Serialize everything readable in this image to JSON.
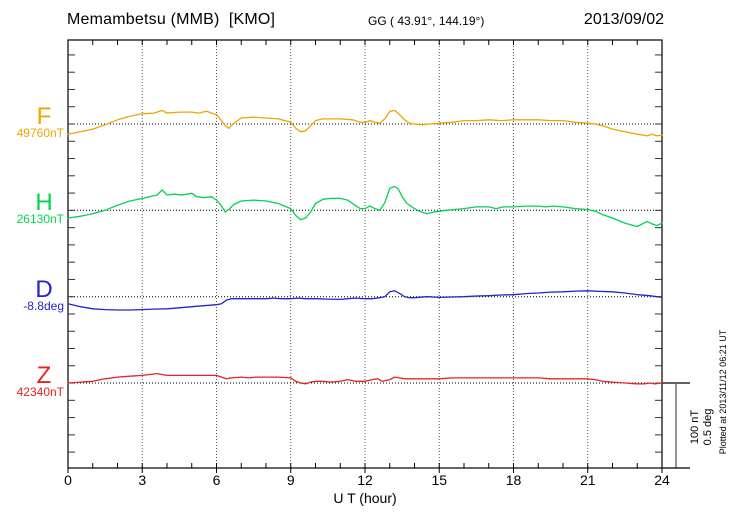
{
  "header": {
    "station": "Memambetsu (MMB)  [KMO]",
    "coords": "GG ( 43.91°, 144.19°)",
    "date": "2013/09/02"
  },
  "x_axis": {
    "label": "U T (hour)",
    "ticks": [
      "0",
      "3",
      "6",
      "9",
      "12",
      "15",
      "18",
      "21",
      "24"
    ],
    "tick_hours": [
      0,
      3,
      6,
      9,
      12,
      15,
      18,
      21,
      24
    ],
    "minor_step_hours": 1,
    "range_hours": [
      0,
      24
    ]
  },
  "scale_bar": {
    "nt_label": "100 nT",
    "deg_label": "0.5 deg"
  },
  "footer_note": "Plotted at 2013/11/12 06:21  UT",
  "colors": {
    "f_trace": "#f0a400",
    "h_trace": "#00d44f",
    "d_trace": "#2323cc",
    "z_trace": "#e62222",
    "frame": "#000000",
    "grid": "#555555",
    "background": "#ffffff"
  },
  "chart_data": {
    "type": "line",
    "title": "Memambetsu (MMB) [KMO] magnetogram, 2013/09/02",
    "xlabel": "U T (hour)",
    "xlim": [
      0,
      24
    ],
    "x_major_tick_hours": [
      0,
      3,
      6,
      9,
      12,
      15,
      18,
      21,
      24
    ],
    "grid": "dotted vertical lines every 3 h; dotted horizontal baseline for each channel",
    "legend_position": "left of plot, one colored label per channel",
    "scale": {
      "division_nT": 100,
      "division_deg": 0.5
    },
    "points_format": "[UT_hour, offset_from_baseline_in_unit]",
    "series": [
      {
        "name": "F",
        "label": "F",
        "baseline_label": "49760nT",
        "baseline_value": 49760,
        "unit": "nT",
        "color": "#f0a400",
        "points": [
          [
            0,
            -12
          ],
          [
            0.5,
            -9
          ],
          [
            1,
            -6
          ],
          [
            1.5,
            -1
          ],
          [
            2,
            5
          ],
          [
            2.5,
            9
          ],
          [
            3,
            12
          ],
          [
            3.5,
            13
          ],
          [
            3.8,
            16
          ],
          [
            4,
            13
          ],
          [
            4.5,
            14
          ],
          [
            5,
            14
          ],
          [
            5.3,
            13
          ],
          [
            5.6,
            15
          ],
          [
            5.8,
            13
          ],
          [
            6,
            11
          ],
          [
            6.2,
            4
          ],
          [
            6.35,
            -2
          ],
          [
            6.5,
            -5
          ],
          [
            6.7,
            1
          ],
          [
            7,
            7
          ],
          [
            7.5,
            8
          ],
          [
            8,
            7
          ],
          [
            8.5,
            6
          ],
          [
            9,
            2
          ],
          [
            9.2,
            -5
          ],
          [
            9.4,
            -9
          ],
          [
            9.6,
            -8
          ],
          [
            9.8,
            -2
          ],
          [
            10,
            4
          ],
          [
            10.3,
            6
          ],
          [
            10.7,
            6
          ],
          [
            11,
            6
          ],
          [
            11.5,
            5
          ],
          [
            11.8,
            2
          ],
          [
            12,
            2
          ],
          [
            12.2,
            4
          ],
          [
            12.4,
            2
          ],
          [
            12.6,
            1
          ],
          [
            12.8,
            6
          ],
          [
            13,
            15
          ],
          [
            13.2,
            16
          ],
          [
            13.4,
            11
          ],
          [
            13.6,
            5
          ],
          [
            13.8,
            1
          ],
          [
            14,
            0
          ],
          [
            14.3,
            -1
          ],
          [
            14.6,
            0
          ],
          [
            15,
            1
          ],
          [
            15.5,
            2
          ],
          [
            16,
            4
          ],
          [
            16.5,
            4
          ],
          [
            17,
            5
          ],
          [
            17.5,
            4
          ],
          [
            18,
            5
          ],
          [
            18.5,
            5
          ],
          [
            19,
            5
          ],
          [
            19.5,
            4
          ],
          [
            20,
            4
          ],
          [
            20.5,
            2
          ],
          [
            21,
            1
          ],
          [
            21.3,
            0
          ],
          [
            21.6,
            -2
          ],
          [
            22,
            -6
          ],
          [
            22.5,
            -9
          ],
          [
            23,
            -12
          ],
          [
            23.4,
            -14
          ],
          [
            23.6,
            -12
          ],
          [
            23.8,
            -14
          ],
          [
            24,
            -13
          ]
        ]
      },
      {
        "name": "H",
        "label": "H",
        "baseline_label": "26130nT",
        "baseline_value": 26130,
        "unit": "nT",
        "color": "#00d44f",
        "points": [
          [
            0,
            -9
          ],
          [
            0.5,
            -7
          ],
          [
            1,
            -4
          ],
          [
            1.5,
            0
          ],
          [
            2,
            6
          ],
          [
            2.5,
            11
          ],
          [
            3,
            14
          ],
          [
            3.3,
            16
          ],
          [
            3.6,
            18
          ],
          [
            3.8,
            24
          ],
          [
            4,
            18
          ],
          [
            4.3,
            19
          ],
          [
            4.6,
            18
          ],
          [
            5,
            20
          ],
          [
            5.2,
            16
          ],
          [
            5.5,
            15
          ],
          [
            5.8,
            16
          ],
          [
            6,
            12
          ],
          [
            6.2,
            5
          ],
          [
            6.35,
            -2
          ],
          [
            6.5,
            1
          ],
          [
            6.7,
            7
          ],
          [
            7,
            11
          ],
          [
            7.5,
            12
          ],
          [
            8,
            11
          ],
          [
            8.5,
            8
          ],
          [
            9,
            2
          ],
          [
            9.2,
            -6
          ],
          [
            9.4,
            -11
          ],
          [
            9.6,
            -9
          ],
          [
            9.8,
            -2
          ],
          [
            10,
            8
          ],
          [
            10.3,
            13
          ],
          [
            10.6,
            14
          ],
          [
            11,
            14
          ],
          [
            11.3,
            12
          ],
          [
            11.6,
            6
          ],
          [
            11.8,
            2
          ],
          [
            12,
            2
          ],
          [
            12.2,
            5
          ],
          [
            12.4,
            2
          ],
          [
            12.6,
            0
          ],
          [
            12.8,
            9
          ],
          [
            13,
            26
          ],
          [
            13.2,
            28
          ],
          [
            13.35,
            25
          ],
          [
            13.5,
            16
          ],
          [
            13.7,
            8
          ],
          [
            14,
            2
          ],
          [
            14.2,
            -1
          ],
          [
            14.5,
            -4
          ],
          [
            14.8,
            -2
          ],
          [
            15,
            -1
          ],
          [
            15.3,
            0
          ],
          [
            15.6,
            1
          ],
          [
            16,
            2
          ],
          [
            16.5,
            4
          ],
          [
            17,
            4
          ],
          [
            17.3,
            2
          ],
          [
            17.6,
            4
          ],
          [
            18,
            4
          ],
          [
            18.5,
            5
          ],
          [
            19,
            5
          ],
          [
            19.3,
            4
          ],
          [
            19.6,
            5
          ],
          [
            20,
            4
          ],
          [
            20.5,
            2
          ],
          [
            21,
            1
          ],
          [
            21.3,
            -1
          ],
          [
            21.6,
            -5
          ],
          [
            22,
            -9
          ],
          [
            22.5,
            -15
          ],
          [
            23,
            -19
          ],
          [
            23.2,
            -16
          ],
          [
            23.4,
            -13
          ],
          [
            23.6,
            -16
          ],
          [
            23.8,
            -18
          ],
          [
            24,
            -15
          ]
        ]
      },
      {
        "name": "D",
        "label": "D",
        "baseline_label": "-8.8deg",
        "baseline_value": -8.8,
        "unit": "deg",
        "color": "#2323cc",
        "points": [
          [
            0,
            -0.041
          ],
          [
            0.5,
            -0.059
          ],
          [
            1,
            -0.071
          ],
          [
            1.5,
            -0.076
          ],
          [
            2,
            -0.078
          ],
          [
            2.5,
            -0.078
          ],
          [
            3,
            -0.076
          ],
          [
            3.5,
            -0.073
          ],
          [
            4,
            -0.071
          ],
          [
            4.5,
            -0.065
          ],
          [
            5,
            -0.059
          ],
          [
            5.5,
            -0.053
          ],
          [
            6,
            -0.047
          ],
          [
            6.2,
            -0.041
          ],
          [
            6.4,
            -0.02
          ],
          [
            6.6,
            -0.012
          ],
          [
            7,
            -0.012
          ],
          [
            7.5,
            -0.012
          ],
          [
            8,
            -0.012
          ],
          [
            8.3,
            -0.008
          ],
          [
            8.6,
            -0.012
          ],
          [
            9,
            -0.012
          ],
          [
            9.3,
            -0.008
          ],
          [
            9.6,
            -0.012
          ],
          [
            10,
            -0.012
          ],
          [
            10.5,
            -0.014
          ],
          [
            11,
            -0.016
          ],
          [
            11.3,
            -0.012
          ],
          [
            11.6,
            -0.008
          ],
          [
            12,
            -0.012
          ],
          [
            12.3,
            -0.012
          ],
          [
            12.6,
            -0.006
          ],
          [
            12.8,
            0
          ],
          [
            13,
            0.029
          ],
          [
            13.2,
            0.035
          ],
          [
            13.4,
            0.018
          ],
          [
            13.6,
            0
          ],
          [
            13.8,
            -0.006
          ],
          [
            14,
            -0.006
          ],
          [
            14.5,
            0
          ],
          [
            15,
            -0.004
          ],
          [
            15.5,
            -0.002
          ],
          [
            16,
            0
          ],
          [
            16.5,
            0.004
          ],
          [
            17,
            0.006
          ],
          [
            17.5,
            0.01
          ],
          [
            18,
            0.012
          ],
          [
            18.5,
            0.018
          ],
          [
            19,
            0.022
          ],
          [
            19.5,
            0.027
          ],
          [
            20,
            0.029
          ],
          [
            20.5,
            0.033
          ],
          [
            21,
            0.035
          ],
          [
            21.5,
            0.031
          ],
          [
            22,
            0.029
          ],
          [
            22.5,
            0.022
          ],
          [
            23,
            0.012
          ],
          [
            23.5,
            0.006
          ],
          [
            24,
            -0.004
          ]
        ]
      },
      {
        "name": "Z",
        "label": "Z",
        "baseline_label": "42340nT",
        "baseline_value": 42340,
        "unit": "nT",
        "color": "#e62222",
        "points": [
          [
            0,
            0
          ],
          [
            0.5,
            1
          ],
          [
            1,
            2
          ],
          [
            1.5,
            5
          ],
          [
            2,
            7
          ],
          [
            2.5,
            8
          ],
          [
            3,
            9
          ],
          [
            3.6,
            11
          ],
          [
            4,
            9
          ],
          [
            4.5,
            9
          ],
          [
            5,
            9
          ],
          [
            5.5,
            9
          ],
          [
            6,
            9
          ],
          [
            6.2,
            7
          ],
          [
            6.4,
            5
          ],
          [
            6.6,
            6
          ],
          [
            7,
            7
          ],
          [
            7.3,
            6
          ],
          [
            7.6,
            7
          ],
          [
            8,
            7
          ],
          [
            8.5,
            7
          ],
          [
            9,
            6
          ],
          [
            9.2,
            2
          ],
          [
            9.4,
            0
          ],
          [
            9.6,
            -1
          ],
          [
            9.8,
            1
          ],
          [
            10,
            2
          ],
          [
            10.3,
            2
          ],
          [
            10.6,
            1
          ],
          [
            11,
            2
          ],
          [
            11.3,
            4
          ],
          [
            11.6,
            2
          ],
          [
            12,
            2
          ],
          [
            12.3,
            4
          ],
          [
            12.5,
            5
          ],
          [
            12.7,
            2
          ],
          [
            13,
            4
          ],
          [
            13.2,
            7
          ],
          [
            13.4,
            6
          ],
          [
            13.6,
            5
          ],
          [
            14,
            5
          ],
          [
            14.5,
            5
          ],
          [
            15,
            5
          ],
          [
            15.5,
            6
          ],
          [
            16,
            6
          ],
          [
            17,
            6
          ],
          [
            17.5,
            6
          ],
          [
            18,
            6
          ],
          [
            18.5,
            6
          ],
          [
            19,
            6
          ],
          [
            19.5,
            5
          ],
          [
            20,
            5
          ],
          [
            21,
            5
          ],
          [
            21.3,
            4
          ],
          [
            21.6,
            2
          ],
          [
            22,
            1
          ],
          [
            22.5,
            0
          ],
          [
            23,
            -1
          ],
          [
            23.3,
            -1
          ],
          [
            23.5,
            0
          ],
          [
            23.7,
            -1
          ],
          [
            24,
            0
          ]
        ]
      }
    ]
  }
}
